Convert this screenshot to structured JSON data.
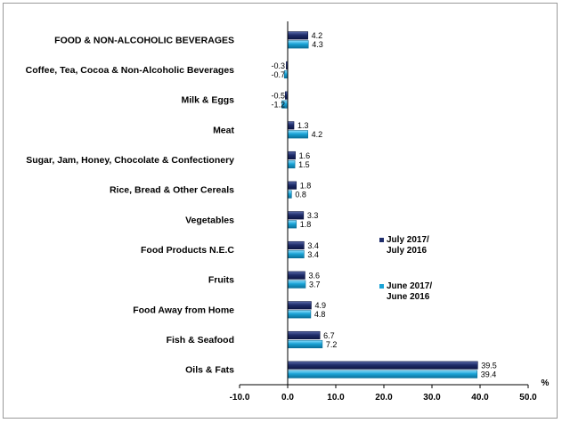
{
  "chart_data": {
    "type": "bar",
    "orientation": "horizontal",
    "categories": [
      "FOOD & NON-ALCOHOLIC BEVERAGES",
      "Coffee, Tea, Cocoa & Non-Alcoholic Beverages",
      "Milk & Eggs",
      "Meat",
      "Sugar, Jam, Honey, Chocolate & Confectionery",
      "Rice, Bread & Other Cereals",
      "Vegetables",
      "Food Products N.E.C",
      "Fruits",
      "Food Away from Home",
      "Fish & Seafood",
      "Oils & Fats"
    ],
    "series": [
      {
        "name": "July 2017/ July 2016",
        "color": "#1f2d6b",
        "values": [
          4.2,
          -0.3,
          -0.5,
          1.3,
          1.6,
          1.8,
          3.3,
          3.4,
          3.6,
          4.9,
          6.7,
          39.5
        ],
        "labels": [
          "4.2",
          "-0.3",
          "-0.5",
          "1.3",
          "1.6",
          "1.8",
          "3.3",
          "3.4",
          "3.6",
          "4.9",
          "6.7",
          "39.5"
        ]
      },
      {
        "name": "June 2017/ June 2016",
        "color": "#1aa3d6",
        "values": [
          4.3,
          -0.7,
          -1.2,
          4.2,
          1.5,
          0.8,
          1.8,
          3.4,
          3.7,
          4.8,
          7.2,
          39.4
        ],
        "labels": [
          "4.3",
          "-0.7",
          "-1.2",
          "4.2",
          "1.5",
          "0.8",
          "1.8",
          "3.4",
          "3.7",
          "4.8",
          "7.2",
          "39.4"
        ]
      }
    ],
    "legend": [
      {
        "line1": "July 2017/",
        "line2": "July 2016"
      },
      {
        "line1": "June 2017/",
        "line2": "June 2016"
      }
    ],
    "xlim": [
      -10,
      50
    ],
    "x_ticks": [
      -10,
      0,
      10,
      20,
      30,
      40,
      50
    ],
    "x_tick_labels": [
      "-10.0",
      "0.0",
      "10.0",
      "20.0",
      "30.0",
      "40.0",
      "50.0"
    ],
    "x_unit": "%",
    "legend_position": "right-middle",
    "grid": false
  }
}
